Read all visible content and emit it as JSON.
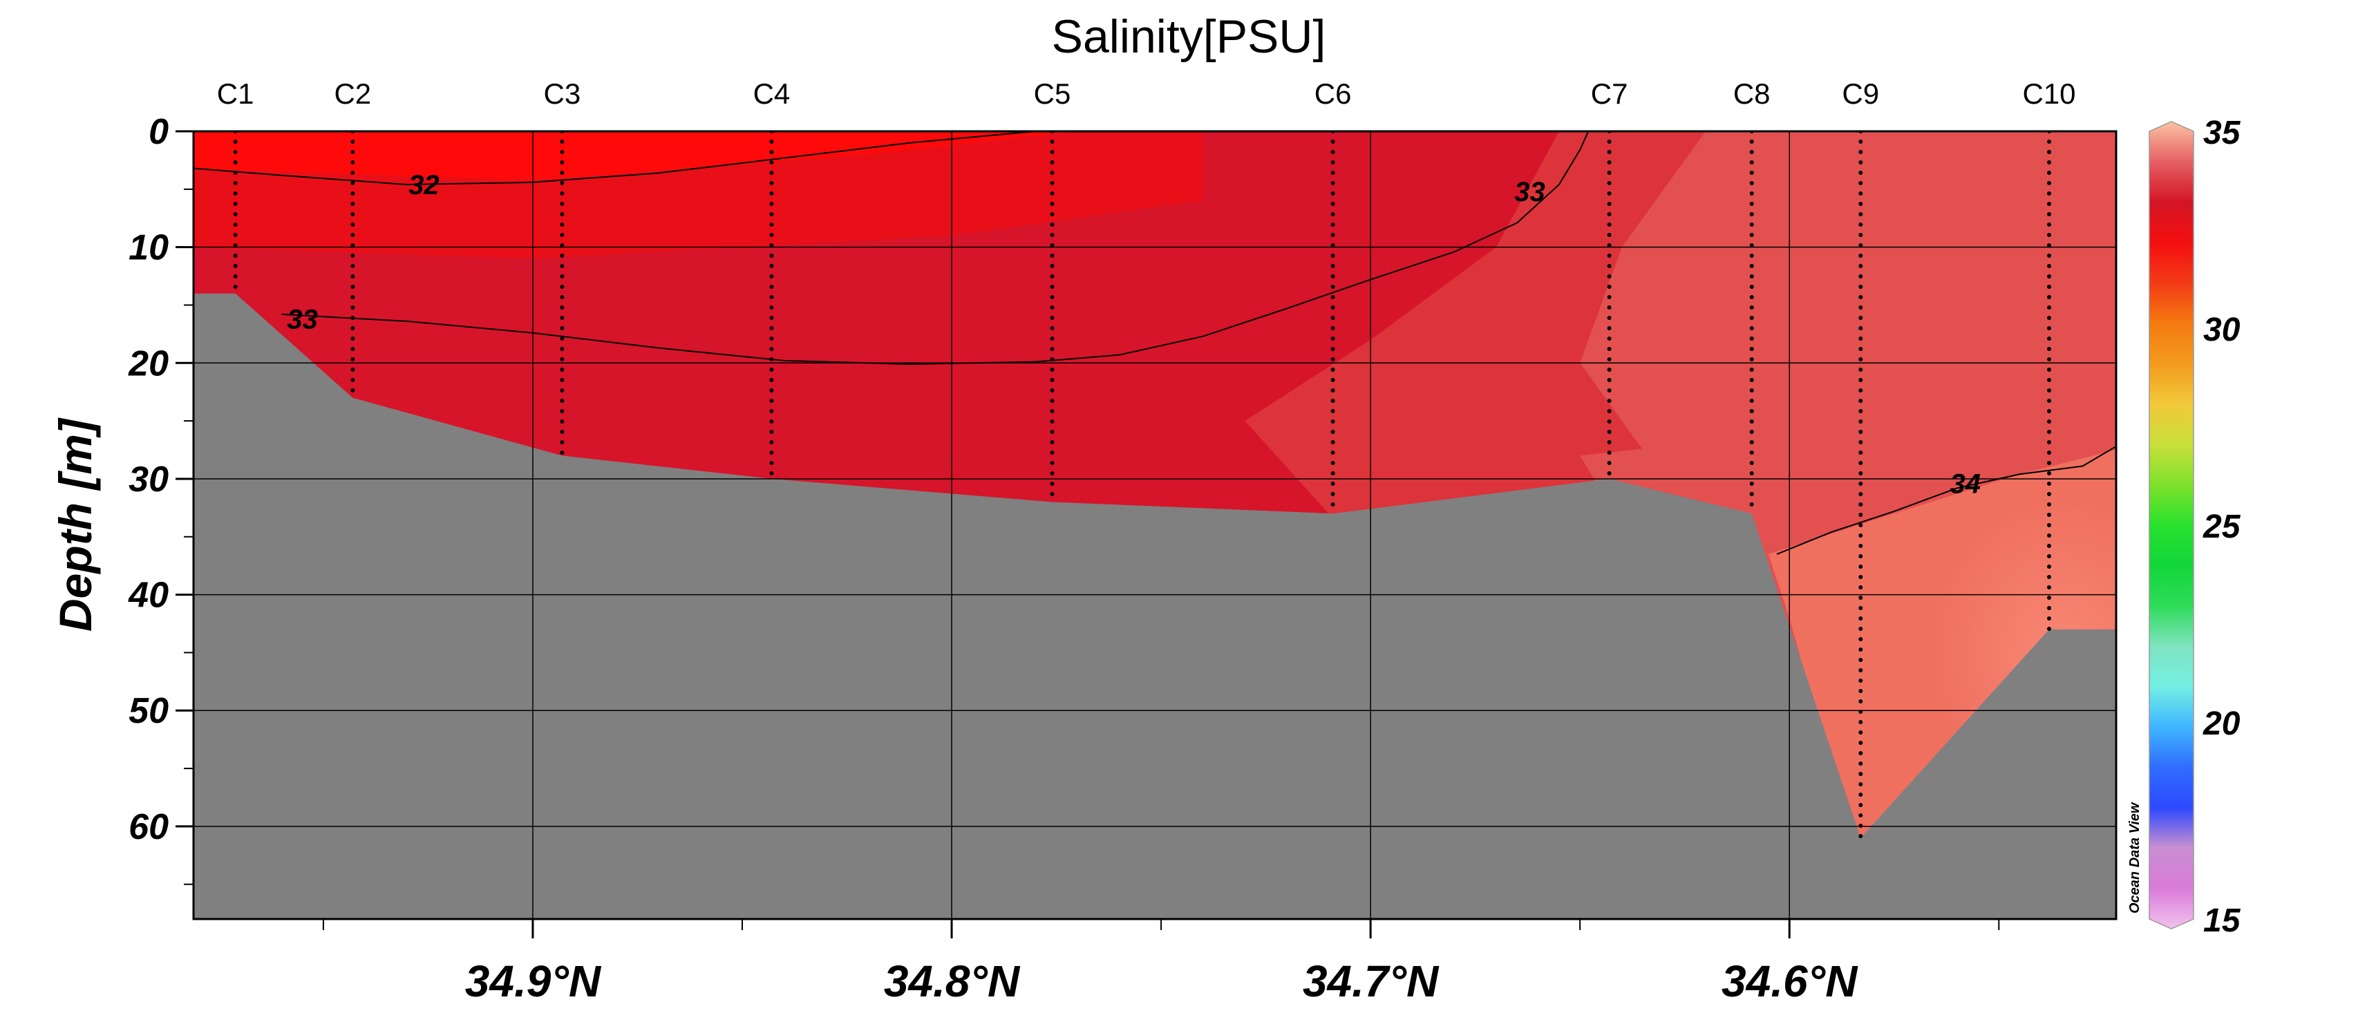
{
  "chart_data": {
    "type": "heatmap",
    "title": "Salinity[PSU]",
    "ylabel": "Depth [m]",
    "xlabel": "",
    "xlim": [
      34.981,
      34.522
    ],
    "ylim": [
      0,
      68
    ],
    "x_ticks": [
      34.9,
      34.8,
      34.7,
      34.6
    ],
    "x_tick_labels": [
      "34.9°N",
      "34.8°N",
      "34.7°N",
      "34.6°N"
    ],
    "y_ticks": [
      0,
      10,
      20,
      30,
      40,
      50,
      60
    ],
    "y_tick_labels": [
      "0",
      "10",
      "20",
      "30",
      "40",
      "50",
      "60"
    ],
    "grid": true,
    "stations": [
      {
        "name": "C1",
        "lat": 34.971,
        "bottom_depth": 14
      },
      {
        "name": "C2",
        "lat": 34.943,
        "bottom_depth": 23
      },
      {
        "name": "C3",
        "lat": 34.893,
        "bottom_depth": 28
      },
      {
        "name": "C4",
        "lat": 34.843,
        "bottom_depth": 30
      },
      {
        "name": "C5",
        "lat": 34.776,
        "bottom_depth": 32
      },
      {
        "name": "C6",
        "lat": 34.709,
        "bottom_depth": 33
      },
      {
        "name": "C7",
        "lat": 34.643,
        "bottom_depth": 30
      },
      {
        "name": "C8",
        "lat": 34.609,
        "bottom_depth": 33
      },
      {
        "name": "C9",
        "lat": 34.583,
        "bottom_depth": 61
      },
      {
        "name": "C10",
        "lat": 34.538,
        "bottom_depth": 43
      }
    ],
    "bathymetry": [
      {
        "lat": 34.981,
        "depth": 14
      },
      {
        "lat": 34.971,
        "depth": 14
      },
      {
        "lat": 34.943,
        "depth": 23
      },
      {
        "lat": 34.893,
        "depth": 28
      },
      {
        "lat": 34.843,
        "depth": 30
      },
      {
        "lat": 34.776,
        "depth": 32
      },
      {
        "lat": 34.709,
        "depth": 33
      },
      {
        "lat": 34.643,
        "depth": 30
      },
      {
        "lat": 34.609,
        "depth": 33
      },
      {
        "lat": 34.583,
        "depth": 61
      },
      {
        "lat": 34.538,
        "depth": 43
      },
      {
        "lat": 34.522,
        "depth": 43
      }
    ],
    "contours": [
      {
        "label": "32",
        "points": [
          [
            34.981,
            3.2
          ],
          [
            34.96,
            3.8
          ],
          [
            34.93,
            4.6
          ],
          [
            34.9,
            4.4
          ],
          [
            34.87,
            3.6
          ],
          [
            34.84,
            2.3
          ],
          [
            34.81,
            1.0
          ],
          [
            34.78,
            0
          ]
        ]
      },
      {
        "label": "33",
        "points": [
          [
            34.96,
            15.8
          ],
          [
            34.93,
            16.4
          ],
          [
            34.9,
            17.4
          ],
          [
            34.87,
            18.7
          ],
          [
            34.84,
            19.8
          ],
          [
            34.81,
            20.1
          ],
          [
            34.78,
            19.9
          ],
          [
            34.76,
            19.3
          ],
          [
            34.74,
            17.7
          ],
          [
            34.72,
            15.3
          ],
          [
            34.7,
            12.8
          ],
          [
            34.68,
            10.4
          ],
          [
            34.665,
            7.9
          ],
          [
            34.655,
            4.6
          ],
          [
            34.65,
            1.6
          ],
          [
            34.648,
            0
          ]
        ]
      },
      {
        "label": "34",
        "points": [
          [
            34.603,
            36.5
          ],
          [
            34.59,
            34.6
          ],
          [
            34.575,
            32.8
          ],
          [
            34.56,
            30.8
          ],
          [
            34.545,
            29.6
          ],
          [
            34.53,
            28.9
          ],
          [
            34.522,
            27.2
          ]
        ]
      }
    ],
    "contour_labels": [
      {
        "text": "32",
        "lat": 34.926,
        "depth": 4.6
      },
      {
        "text": "33",
        "lat": 34.955,
        "depth": 16.2
      },
      {
        "text": "33",
        "lat": 34.662,
        "depth": 5.2
      },
      {
        "text": "34",
        "lat": 34.558,
        "depth": 30.4
      }
    ],
    "colorbar": {
      "min": 15,
      "max": 35,
      "ticks": [
        35,
        30,
        25,
        20,
        15
      ],
      "tick_labels": [
        "35",
        "30",
        "25",
        "20",
        "15"
      ],
      "stops": [
        {
          "value": 15,
          "color": "#f2c2ef"
        },
        {
          "value": 16,
          "color": "#d97bd8"
        },
        {
          "value": 17,
          "color": "#c98fd0"
        },
        {
          "value": 18,
          "color": "#2d49ff"
        },
        {
          "value": 19,
          "color": "#2f6dff"
        },
        {
          "value": 20,
          "color": "#3fb6ff"
        },
        {
          "value": 21,
          "color": "#74efe4"
        },
        {
          "value": 22,
          "color": "#7fe3bf"
        },
        {
          "value": 23,
          "color": "#2fdc5a"
        },
        {
          "value": 24,
          "color": "#12d63a"
        },
        {
          "value": 25,
          "color": "#28e12e"
        },
        {
          "value": 26,
          "color": "#7fe12b"
        },
        {
          "value": 27,
          "color": "#c9e03b"
        },
        {
          "value": 28,
          "color": "#f2c93a"
        },
        {
          "value": 29,
          "color": "#f39b1e"
        },
        {
          "value": 30,
          "color": "#f57a10"
        },
        {
          "value": 31,
          "color": "#f33b17"
        },
        {
          "value": 32,
          "color": "#f40f10"
        },
        {
          "value": 33,
          "color": "#d31524"
        },
        {
          "value": 34,
          "color": "#e56065"
        },
        {
          "value": 35,
          "color": "#fbc3a3"
        }
      ]
    },
    "field_colors": {
      "sal_32_low": "#ff0a0a",
      "sal_32_5": "#e80f18",
      "sal_33": "#d6142a",
      "sal_33_5": "#dc343a",
      "sal_34": "#e25050",
      "sal_34_5": "#f07060",
      "sal_35": "#f88874",
      "seabed": "#808080"
    },
    "watermark": "Ocean Data View"
  }
}
